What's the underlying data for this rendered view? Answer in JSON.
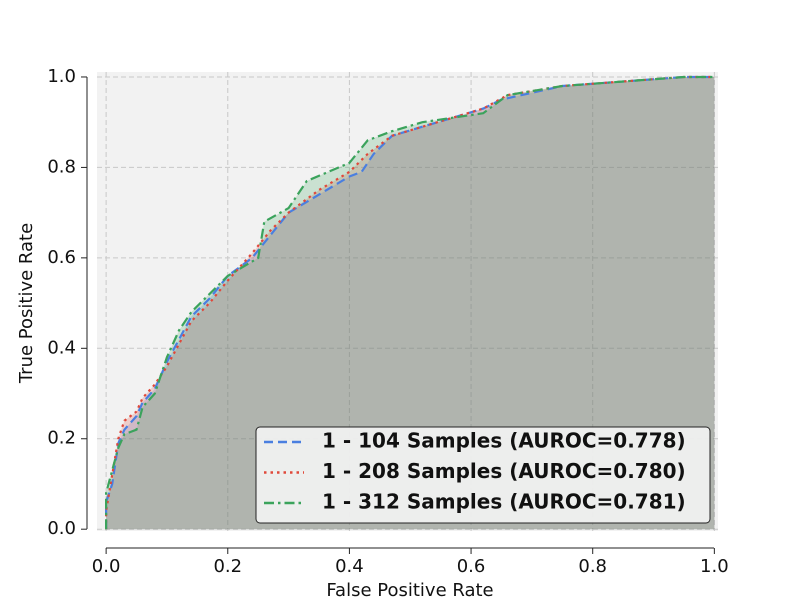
{
  "chart_data": {
    "type": "line",
    "xlabel": "False Positive Rate",
    "ylabel": "True Positive Rate",
    "xlim": [
      -0.015,
      1.006
    ],
    "ylim": [
      -0.004,
      1.011
    ],
    "xticks": [
      {
        "value": 0,
        "label": "0.0"
      },
      0.2,
      0.4,
      0.6,
      0.8,
      {
        "value": 1,
        "label": "1.0"
      }
    ],
    "yticks": [
      {
        "value": 0,
        "label": "0.0"
      },
      0.2,
      0.4,
      0.6,
      0.8,
      {
        "value": 1,
        "label": "1.0"
      }
    ],
    "grid": true,
    "legend": "lower right",
    "series": [
      {
        "name": "1 - 104 Samples (AUROC=0.778)",
        "color": "#4a7fe0",
        "dash": "dashed",
        "x": [
          0,
          0,
          0.01,
          0.02,
          0.03,
          0.05,
          0.06,
          0.08,
          0.1,
          0.12,
          0.14,
          0.17,
          0.2,
          0.24,
          0.27,
          0.3,
          0.35,
          0.4,
          0.42,
          0.44,
          0.47,
          0.52,
          0.57,
          0.62,
          0.65,
          0.75,
          0.85,
          0.95,
          1
        ],
        "y": [
          0,
          0.06,
          0.1,
          0.19,
          0.22,
          0.25,
          0.28,
          0.31,
          0.37,
          0.42,
          0.47,
          0.51,
          0.56,
          0.6,
          0.65,
          0.7,
          0.74,
          0.78,
          0.79,
          0.83,
          0.87,
          0.89,
          0.91,
          0.93,
          0.95,
          0.98,
          0.99,
          1,
          1
        ]
      },
      {
        "name": "1 - 208 Samples (AUROC=0.780)",
        "color": "#e0483a",
        "dash": "dotted",
        "x": [
          0,
          0,
          0.01,
          0.02,
          0.03,
          0.05,
          0.06,
          0.08,
          0.1,
          0.12,
          0.14,
          0.17,
          0.2,
          0.24,
          0.27,
          0.3,
          0.35,
          0.4,
          0.43,
          0.47,
          0.52,
          0.57,
          0.62,
          0.66,
          0.75,
          0.85,
          0.95,
          1
        ],
        "y": [
          0,
          0.04,
          0.12,
          0.2,
          0.24,
          0.26,
          0.29,
          0.32,
          0.36,
          0.41,
          0.46,
          0.5,
          0.55,
          0.61,
          0.66,
          0.7,
          0.75,
          0.79,
          0.83,
          0.87,
          0.89,
          0.91,
          0.93,
          0.96,
          0.98,
          0.99,
          1,
          1
        ]
      },
      {
        "name": "1 - 312 Samples (AUROC=0.781)",
        "color": "#3ba35c",
        "dash": "dashdot",
        "x": [
          0,
          0,
          0.01,
          0.02,
          0.03,
          0.05,
          0.06,
          0.08,
          0.1,
          0.12,
          0.14,
          0.17,
          0.2,
          0.25,
          0.26,
          0.3,
          0.33,
          0.4,
          0.43,
          0.47,
          0.52,
          0.57,
          0.62,
          0.66,
          0.75,
          0.85,
          0.95,
          1
        ],
        "y": [
          0,
          0.08,
          0.13,
          0.18,
          0.21,
          0.22,
          0.27,
          0.3,
          0.38,
          0.44,
          0.48,
          0.52,
          0.56,
          0.6,
          0.68,
          0.71,
          0.77,
          0.81,
          0.86,
          0.88,
          0.9,
          0.91,
          0.92,
          0.96,
          0.98,
          0.99,
          1,
          1
        ]
      }
    ]
  }
}
